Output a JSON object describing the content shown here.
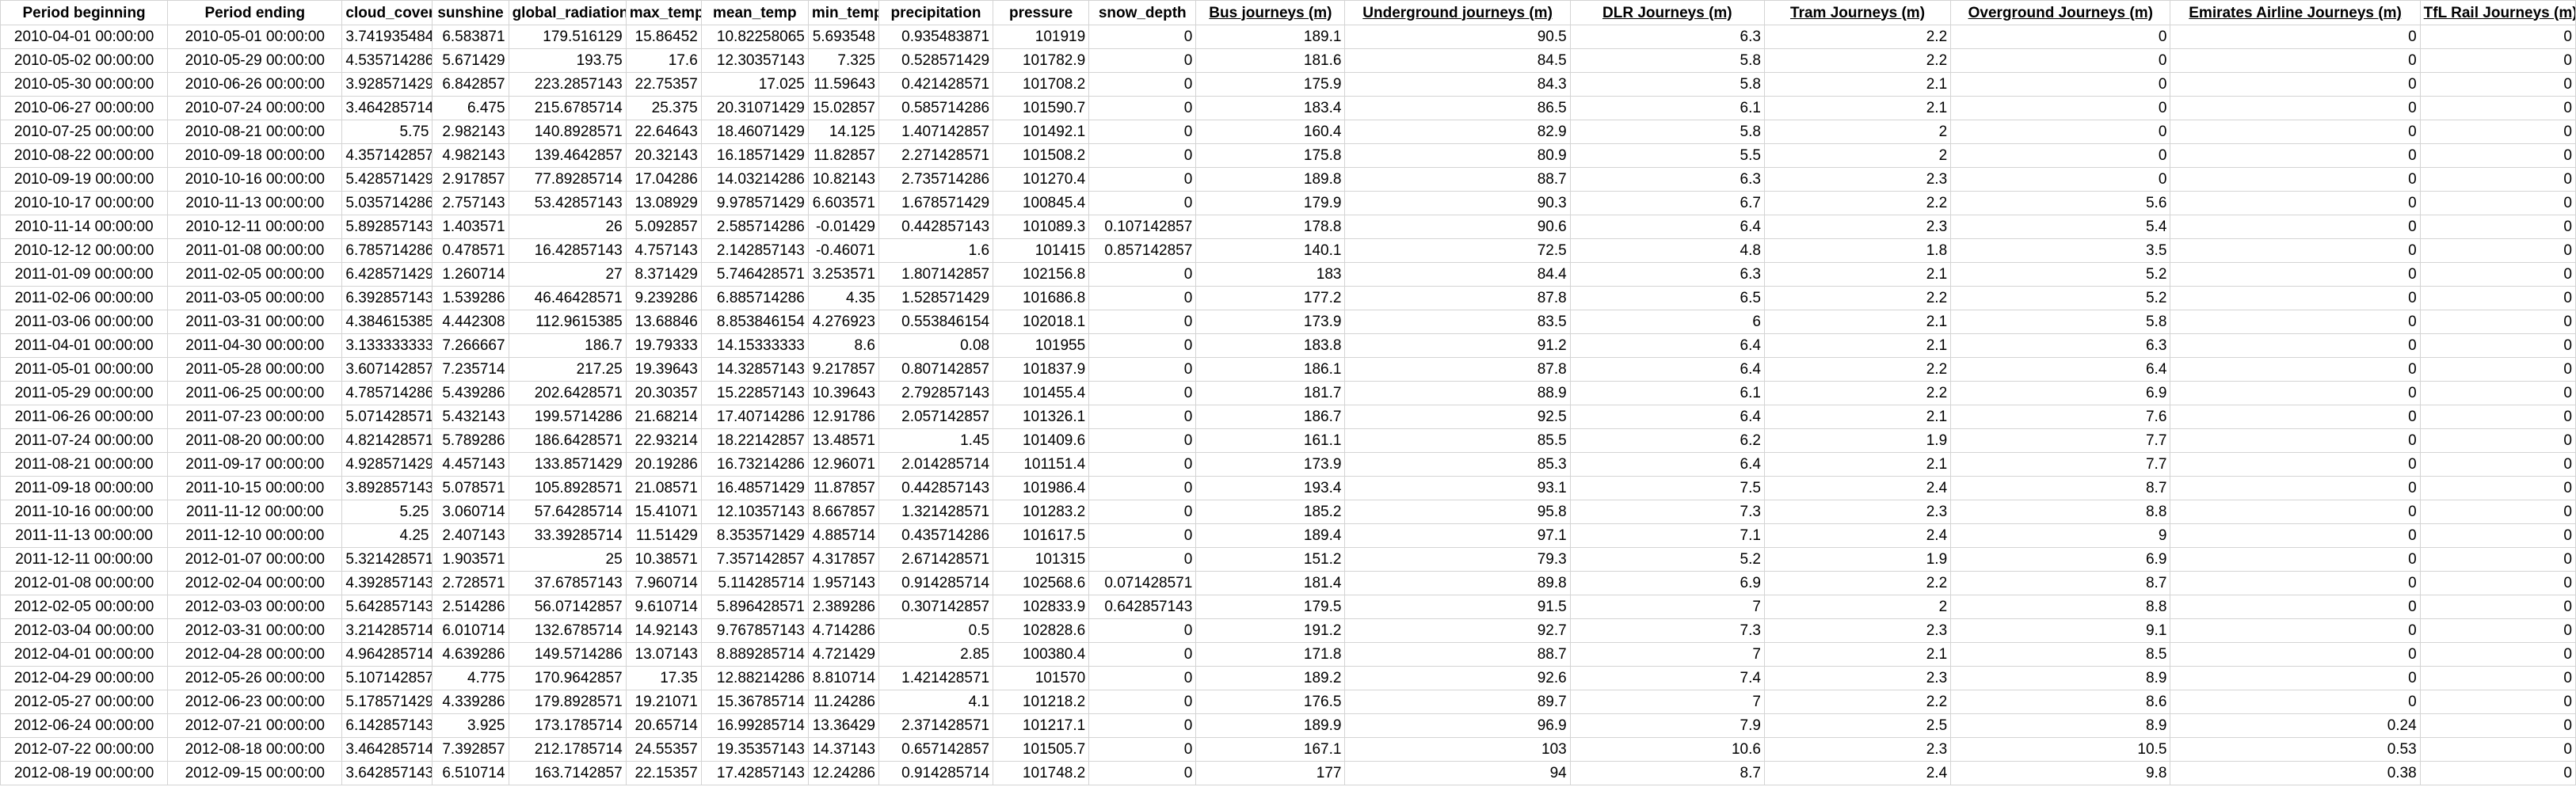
{
  "sheet": {
    "columns": [
      {
        "label": "Period beginning",
        "underline": false,
        "align": "c"
      },
      {
        "label": "Period ending",
        "underline": false,
        "align": "c"
      },
      {
        "label": "cloud_cover",
        "underline": false,
        "align": "r"
      },
      {
        "label": "sunshine",
        "underline": false,
        "align": "r"
      },
      {
        "label": "global_radiation",
        "underline": false,
        "align": "r"
      },
      {
        "label": "max_temp",
        "underline": false,
        "align": "r"
      },
      {
        "label": "mean_temp",
        "underline": false,
        "align": "r"
      },
      {
        "label": "min_temp",
        "underline": false,
        "align": "r"
      },
      {
        "label": "precipitation",
        "underline": false,
        "align": "r"
      },
      {
        "label": "pressure",
        "underline": false,
        "align": "r"
      },
      {
        "label": "snow_depth",
        "underline": false,
        "align": "r"
      },
      {
        "label": "Bus journeys (m)",
        "underline": true,
        "align": "r"
      },
      {
        "label": "Underground journeys (m)",
        "underline": true,
        "align": "r"
      },
      {
        "label": "DLR Journeys (m)",
        "underline": true,
        "align": "r"
      },
      {
        "label": "Tram Journeys (m)",
        "underline": true,
        "align": "r"
      },
      {
        "label": "Overground Journeys (m)",
        "underline": true,
        "align": "r"
      },
      {
        "label": "Emirates Airline Journeys (m)",
        "underline": true,
        "align": "r"
      },
      {
        "label": "TfL Rail Journeys (m)",
        "underline": true,
        "align": "r"
      }
    ],
    "rows": [
      [
        "2010-04-01 00:00:00",
        "2010-05-01 00:00:00",
        "3.741935484",
        "6.583871",
        "179.516129",
        "15.86452",
        "10.82258065",
        "5.693548",
        "0.935483871",
        "101919",
        "0",
        "189.1",
        "90.5",
        "6.3",
        "2.2",
        "0",
        "0",
        "0"
      ],
      [
        "2010-05-02 00:00:00",
        "2010-05-29 00:00:00",
        "4.535714286",
        "5.671429",
        "193.75",
        "17.6",
        "12.30357143",
        "7.325",
        "0.528571429",
        "101782.9",
        "0",
        "181.6",
        "84.5",
        "5.8",
        "2.2",
        "0",
        "0",
        "0"
      ],
      [
        "2010-05-30 00:00:00",
        "2010-06-26 00:00:00",
        "3.928571429",
        "6.842857",
        "223.2857143",
        "22.75357",
        "17.025",
        "11.59643",
        "0.421428571",
        "101708.2",
        "0",
        "175.9",
        "84.3",
        "5.8",
        "2.1",
        "0",
        "0",
        "0"
      ],
      [
        "2010-06-27 00:00:00",
        "2010-07-24 00:00:00",
        "3.464285714",
        "6.475",
        "215.6785714",
        "25.375",
        "20.31071429",
        "15.02857",
        "0.585714286",
        "101590.7",
        "0",
        "183.4",
        "86.5",
        "6.1",
        "2.1",
        "0",
        "0",
        "0"
      ],
      [
        "2010-07-25 00:00:00",
        "2010-08-21 00:00:00",
        "5.75",
        "2.982143",
        "140.8928571",
        "22.64643",
        "18.46071429",
        "14.125",
        "1.407142857",
        "101492.1",
        "0",
        "160.4",
        "82.9",
        "5.8",
        "2",
        "0",
        "0",
        "0"
      ],
      [
        "2010-08-22 00:00:00",
        "2010-09-18 00:00:00",
        "4.357142857",
        "4.982143",
        "139.4642857",
        "20.32143",
        "16.18571429",
        "11.82857",
        "2.271428571",
        "101508.2",
        "0",
        "175.8",
        "80.9",
        "5.5",
        "2",
        "0",
        "0",
        "0"
      ],
      [
        "2010-09-19 00:00:00",
        "2010-10-16 00:00:00",
        "5.428571429",
        "2.917857",
        "77.89285714",
        "17.04286",
        "14.03214286",
        "10.82143",
        "2.735714286",
        "101270.4",
        "0",
        "189.8",
        "88.7",
        "6.3",
        "2.3",
        "0",
        "0",
        "0"
      ],
      [
        "2010-10-17 00:00:00",
        "2010-11-13 00:00:00",
        "5.035714286",
        "2.757143",
        "53.42857143",
        "13.08929",
        "9.978571429",
        "6.603571",
        "1.678571429",
        "100845.4",
        "0",
        "179.9",
        "90.3",
        "6.7",
        "2.2",
        "5.6",
        "0",
        "0"
      ],
      [
        "2010-11-14 00:00:00",
        "2010-12-11 00:00:00",
        "5.892857143",
        "1.403571",
        "26",
        "5.092857",
        "2.585714286",
        "-0.01429",
        "0.442857143",
        "101089.3",
        "0.107142857",
        "178.8",
        "90.6",
        "6.4",
        "2.3",
        "5.4",
        "0",
        "0"
      ],
      [
        "2010-12-12 00:00:00",
        "2011-01-08 00:00:00",
        "6.785714286",
        "0.478571",
        "16.42857143",
        "4.757143",
        "2.142857143",
        "-0.46071",
        "1.6",
        "101415",
        "0.857142857",
        "140.1",
        "72.5",
        "4.8",
        "1.8",
        "3.5",
        "0",
        "0"
      ],
      [
        "2011-01-09 00:00:00",
        "2011-02-05 00:00:00",
        "6.428571429",
        "1.260714",
        "27",
        "8.371429",
        "5.746428571",
        "3.253571",
        "1.807142857",
        "102156.8",
        "0",
        "183",
        "84.4",
        "6.3",
        "2.1",
        "5.2",
        "0",
        "0"
      ],
      [
        "2011-02-06 00:00:00",
        "2011-03-05 00:00:00",
        "6.392857143",
        "1.539286",
        "46.46428571",
        "9.239286",
        "6.885714286",
        "4.35",
        "1.528571429",
        "101686.8",
        "0",
        "177.2",
        "87.8",
        "6.5",
        "2.2",
        "5.2",
        "0",
        "0"
      ],
      [
        "2011-03-06 00:00:00",
        "2011-03-31 00:00:00",
        "4.384615385",
        "4.442308",
        "112.9615385",
        "13.68846",
        "8.853846154",
        "4.276923",
        "0.553846154",
        "102018.1",
        "0",
        "173.9",
        "83.5",
        "6",
        "2.1",
        "5.8",
        "0",
        "0"
      ],
      [
        "2011-04-01 00:00:00",
        "2011-04-30 00:00:00",
        "3.133333333",
        "7.266667",
        "186.7",
        "19.79333",
        "14.15333333",
        "8.6",
        "0.08",
        "101955",
        "0",
        "183.8",
        "91.2",
        "6.4",
        "2.1",
        "6.3",
        "0",
        "0"
      ],
      [
        "2011-05-01 00:00:00",
        "2011-05-28 00:00:00",
        "3.607142857",
        "7.235714",
        "217.25",
        "19.39643",
        "14.32857143",
        "9.217857",
        "0.807142857",
        "101837.9",
        "0",
        "186.1",
        "87.8",
        "6.4",
        "2.2",
        "6.4",
        "0",
        "0"
      ],
      [
        "2011-05-29 00:00:00",
        "2011-06-25 00:00:00",
        "4.785714286",
        "5.439286",
        "202.6428571",
        "20.30357",
        "15.22857143",
        "10.39643",
        "2.792857143",
        "101455.4",
        "0",
        "181.7",
        "88.9",
        "6.1",
        "2.2",
        "6.9",
        "0",
        "0"
      ],
      [
        "2011-06-26 00:00:00",
        "2011-07-23 00:00:00",
        "5.071428571",
        "5.432143",
        "199.5714286",
        "21.68214",
        "17.40714286",
        "12.91786",
        "2.057142857",
        "101326.1",
        "0",
        "186.7",
        "92.5",
        "6.4",
        "2.1",
        "7.6",
        "0",
        "0"
      ],
      [
        "2011-07-24 00:00:00",
        "2011-08-20 00:00:00",
        "4.821428571",
        "5.789286",
        "186.6428571",
        "22.93214",
        "18.22142857",
        "13.48571",
        "1.45",
        "101409.6",
        "0",
        "161.1",
        "85.5",
        "6.2",
        "1.9",
        "7.7",
        "0",
        "0"
      ],
      [
        "2011-08-21 00:00:00",
        "2011-09-17 00:00:00",
        "4.928571429",
        "4.457143",
        "133.8571429",
        "20.19286",
        "16.73214286",
        "12.96071",
        "2.014285714",
        "101151.4",
        "0",
        "173.9",
        "85.3",
        "6.4",
        "2.1",
        "7.7",
        "0",
        "0"
      ],
      [
        "2011-09-18 00:00:00",
        "2011-10-15 00:00:00",
        "3.892857143",
        "5.078571",
        "105.8928571",
        "21.08571",
        "16.48571429",
        "11.87857",
        "0.442857143",
        "101986.4",
        "0",
        "193.4",
        "93.1",
        "7.5",
        "2.4",
        "8.7",
        "0",
        "0"
      ],
      [
        "2011-10-16 00:00:00",
        "2011-11-12 00:00:00",
        "5.25",
        "3.060714",
        "57.64285714",
        "15.41071",
        "12.10357143",
        "8.667857",
        "1.321428571",
        "101283.2",
        "0",
        "185.2",
        "95.8",
        "7.3",
        "2.3",
        "8.8",
        "0",
        "0"
      ],
      [
        "2011-11-13 00:00:00",
        "2011-12-10 00:00:00",
        "4.25",
        "2.407143",
        "33.39285714",
        "11.51429",
        "8.353571429",
        "4.885714",
        "0.435714286",
        "101617.5",
        "0",
        "189.4",
        "97.1",
        "7.1",
        "2.4",
        "9",
        "0",
        "0"
      ],
      [
        "2011-12-11 00:00:00",
        "2012-01-07 00:00:00",
        "5.321428571",
        "1.903571",
        "25",
        "10.38571",
        "7.357142857",
        "4.317857",
        "2.671428571",
        "101315",
        "0",
        "151.2",
        "79.3",
        "5.2",
        "1.9",
        "6.9",
        "0",
        "0"
      ],
      [
        "2012-01-08 00:00:00",
        "2012-02-04 00:00:00",
        "4.392857143",
        "2.728571",
        "37.67857143",
        "7.960714",
        "5.114285714",
        "1.957143",
        "0.914285714",
        "102568.6",
        "0.071428571",
        "181.4",
        "89.8",
        "6.9",
        "2.2",
        "8.7",
        "0",
        "0"
      ],
      [
        "2012-02-05 00:00:00",
        "2012-03-03 00:00:00",
        "5.642857143",
        "2.514286",
        "56.07142857",
        "9.610714",
        "5.896428571",
        "2.389286",
        "0.307142857",
        "102833.9",
        "0.642857143",
        "179.5",
        "91.5",
        "7",
        "2",
        "8.8",
        "0",
        "0"
      ],
      [
        "2012-03-04 00:00:00",
        "2012-03-31 00:00:00",
        "3.214285714",
        "6.010714",
        "132.6785714",
        "14.92143",
        "9.767857143",
        "4.714286",
        "0.5",
        "102828.6",
        "0",
        "191.2",
        "92.7",
        "7.3",
        "2.3",
        "9.1",
        "0",
        "0"
      ],
      [
        "2012-04-01 00:00:00",
        "2012-04-28 00:00:00",
        "4.964285714",
        "4.639286",
        "149.5714286",
        "13.07143",
        "8.889285714",
        "4.721429",
        "2.85",
        "100380.4",
        "0",
        "171.8",
        "88.7",
        "7",
        "2.1",
        "8.5",
        "0",
        "0"
      ],
      [
        "2012-04-29 00:00:00",
        "2012-05-26 00:00:00",
        "5.107142857",
        "4.775",
        "170.9642857",
        "17.35",
        "12.88214286",
        "8.810714",
        "1.421428571",
        "101570",
        "0",
        "189.2",
        "92.6",
        "7.4",
        "2.3",
        "8.9",
        "0",
        "0"
      ],
      [
        "2012-05-27 00:00:00",
        "2012-06-23 00:00:00",
        "5.178571429",
        "4.339286",
        "179.8928571",
        "19.21071",
        "15.36785714",
        "11.24286",
        "4.1",
        "101218.2",
        "0",
        "176.5",
        "89.7",
        "7",
        "2.2",
        "8.6",
        "0",
        "0"
      ],
      [
        "2012-06-24 00:00:00",
        "2012-07-21 00:00:00",
        "6.142857143",
        "3.925",
        "173.1785714",
        "20.65714",
        "16.99285714",
        "13.36429",
        "2.371428571",
        "101217.1",
        "0",
        "189.9",
        "96.9",
        "7.9",
        "2.5",
        "8.9",
        "0.24",
        "0"
      ],
      [
        "2012-07-22 00:00:00",
        "2012-08-18 00:00:00",
        "3.464285714",
        "7.392857",
        "212.1785714",
        "24.55357",
        "19.35357143",
        "14.37143",
        "0.657142857",
        "101505.7",
        "0",
        "167.1",
        "103",
        "10.6",
        "2.3",
        "10.5",
        "0.53",
        "0"
      ],
      [
        "2012-08-19 00:00:00",
        "2012-09-15 00:00:00",
        "3.642857143",
        "6.510714",
        "163.7142857",
        "22.15357",
        "17.42857143",
        "12.24286",
        "0.914285714",
        "101748.2",
        "0",
        "177",
        "94",
        "8.7",
        "2.4",
        "9.8",
        "0.38",
        "0"
      ]
    ]
  }
}
